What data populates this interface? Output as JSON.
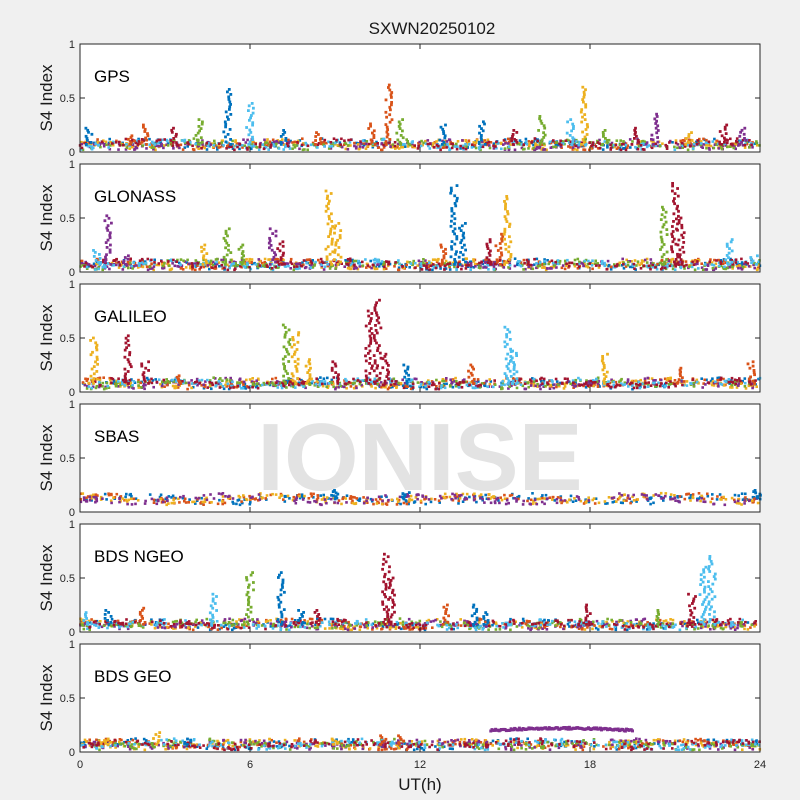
{
  "title": "SXWN20250102",
  "watermark": "IONISE",
  "colors": [
    "#0072BD",
    "#D95319",
    "#EDB120",
    "#7E2F8E",
    "#77AC30",
    "#4DBEEE",
    "#A2142F"
  ],
  "chart_data": [
    {
      "type": "scatter",
      "name": "GPS",
      "xlabel": "",
      "ylabel": "S4 Index",
      "xlim": [
        0,
        24
      ],
      "ylim": [
        0,
        1
      ],
      "xticks": [
        0,
        6,
        12,
        18,
        24
      ],
      "yticks": [
        0,
        0.5,
        1
      ],
      "xtick_labels_shown": false,
      "baseline": 0.07,
      "spikes": [
        [
          0.3,
          0.22,
          0
        ],
        [
          1.8,
          0.15,
          1
        ],
        [
          2.3,
          0.25,
          1
        ],
        [
          3.3,
          0.22,
          6
        ],
        [
          4.2,
          0.3,
          4
        ],
        [
          5.2,
          0.58,
          0
        ],
        [
          6.0,
          0.45,
          5
        ],
        [
          7.2,
          0.2,
          0
        ],
        [
          8.4,
          0.18,
          1
        ],
        [
          10.3,
          0.26,
          1
        ],
        [
          10.9,
          0.62,
          1
        ],
        [
          11.3,
          0.3,
          4
        ],
        [
          12.8,
          0.25,
          0
        ],
        [
          14.2,
          0.28,
          0
        ],
        [
          15.3,
          0.2,
          6
        ],
        [
          16.3,
          0.33,
          4
        ],
        [
          17.3,
          0.3,
          5
        ],
        [
          17.8,
          0.6,
          2
        ],
        [
          18.5,
          0.2,
          4
        ],
        [
          19.6,
          0.22,
          6
        ],
        [
          20.3,
          0.35,
          3
        ],
        [
          21.5,
          0.18,
          2
        ],
        [
          22.7,
          0.25,
          6
        ],
        [
          23.4,
          0.22,
          3
        ]
      ]
    },
    {
      "type": "scatter",
      "name": "GLONASS",
      "xlabel": "",
      "ylabel": "S4 Index",
      "xlim": [
        0,
        24
      ],
      "ylim": [
        0,
        1
      ],
      "xticks": [
        0,
        6,
        12,
        18,
        24
      ],
      "yticks": [
        0,
        0.5,
        1
      ],
      "xtick_labels_shown": false,
      "baseline": 0.07,
      "spikes": [
        [
          0.6,
          0.2,
          5
        ],
        [
          1.0,
          0.52,
          3
        ],
        [
          1.6,
          0.15,
          3
        ],
        [
          4.4,
          0.25,
          2
        ],
        [
          5.2,
          0.4,
          4
        ],
        [
          5.7,
          0.25,
          4
        ],
        [
          6.8,
          0.4,
          3
        ],
        [
          7.1,
          0.28,
          6
        ],
        [
          8.8,
          0.75,
          2
        ],
        [
          9.1,
          0.45,
          2
        ],
        [
          12.8,
          0.25,
          1
        ],
        [
          13.2,
          0.8,
          0
        ],
        [
          13.5,
          0.45,
          0
        ],
        [
          14.4,
          0.3,
          6
        ],
        [
          14.8,
          0.35,
          1
        ],
        [
          15.1,
          0.7,
          2
        ],
        [
          20.6,
          0.6,
          4
        ],
        [
          21.0,
          0.82,
          6
        ],
        [
          21.2,
          0.5,
          6
        ],
        [
          22.9,
          0.3,
          5
        ],
        [
          23.8,
          0.15,
          5
        ]
      ]
    },
    {
      "type": "scatter",
      "name": "GALILEO",
      "xlabel": "",
      "ylabel": "S4 Index",
      "xlim": [
        0,
        24
      ],
      "ylim": [
        0,
        1
      ],
      "xticks": [
        0,
        6,
        12,
        18,
        24
      ],
      "yticks": [
        0,
        0.5,
        1
      ],
      "xtick_labels_shown": false,
      "baseline": 0.08,
      "spikes": [
        [
          0.5,
          0.5,
          2
        ],
        [
          1.7,
          0.52,
          6
        ],
        [
          2.3,
          0.28,
          6
        ],
        [
          3.5,
          0.15,
          1
        ],
        [
          7.3,
          0.62,
          4
        ],
        [
          7.6,
          0.55,
          2
        ],
        [
          8.1,
          0.3,
          2
        ],
        [
          9.0,
          0.28,
          6
        ],
        [
          10.2,
          0.75,
          6
        ],
        [
          10.5,
          0.85,
          6
        ],
        [
          10.8,
          0.35,
          6
        ],
        [
          11.5,
          0.25,
          0
        ],
        [
          13.8,
          0.25,
          1
        ],
        [
          15.1,
          0.6,
          5
        ],
        [
          15.3,
          0.38,
          5
        ],
        [
          18.5,
          0.35,
          2
        ],
        [
          21.2,
          0.22,
          1
        ],
        [
          23.7,
          0.28,
          1
        ]
      ]
    },
    {
      "type": "scatter",
      "name": "SBAS",
      "xlabel": "",
      "ylabel": "S4 Index",
      "xlim": [
        0,
        24
      ],
      "ylim": [
        0,
        1
      ],
      "xticks": [
        0,
        6,
        12,
        18,
        24
      ],
      "yticks": [
        0,
        0.5,
        1
      ],
      "xtick_labels_shown": false,
      "baseline": 0.12,
      "spikes": [
        [
          9.0,
          0.2,
          0
        ],
        [
          11.5,
          0.18,
          0
        ],
        [
          23.9,
          0.2,
          0
        ]
      ]
    },
    {
      "type": "scatter",
      "name": "BDS NGEO",
      "xlabel": "",
      "ylabel": "S4 Index",
      "xlim": [
        0,
        24
      ],
      "ylim": [
        0,
        1
      ],
      "xticks": [
        0,
        6,
        12,
        18,
        24
      ],
      "yticks": [
        0,
        0.5,
        1
      ],
      "xtick_labels_shown": false,
      "baseline": 0.07,
      "spikes": [
        [
          0.2,
          0.18,
          5
        ],
        [
          1.0,
          0.2,
          0
        ],
        [
          2.2,
          0.22,
          1
        ],
        [
          4.7,
          0.35,
          5
        ],
        [
          6.0,
          0.55,
          4
        ],
        [
          7.1,
          0.55,
          0
        ],
        [
          7.8,
          0.2,
          0
        ],
        [
          8.4,
          0.2,
          6
        ],
        [
          10.8,
          0.72,
          6
        ],
        [
          11.0,
          0.5,
          6
        ],
        [
          12.9,
          0.25,
          1
        ],
        [
          13.9,
          0.25,
          0
        ],
        [
          14.3,
          0.18,
          0
        ],
        [
          17.9,
          0.25,
          6
        ],
        [
          20.4,
          0.2,
          4
        ],
        [
          21.6,
          0.35,
          6
        ],
        [
          22.0,
          0.6,
          5
        ],
        [
          22.3,
          0.7,
          5
        ]
      ]
    },
    {
      "type": "scatter",
      "name": "BDS GEO",
      "xlabel": "UT(h)",
      "ylabel": "S4 Index",
      "xlim": [
        0,
        24
      ],
      "ylim": [
        0,
        1
      ],
      "xticks": [
        0,
        6,
        12,
        18,
        24
      ],
      "yticks": [
        0,
        0.5,
        1
      ],
      "xtick_labels_shown": true,
      "baseline": 0.07,
      "spikes": [
        [
          1.0,
          0.12,
          2
        ],
        [
          2.7,
          0.18,
          2
        ],
        [
          3.8,
          0.12,
          0
        ],
        [
          9.0,
          0.12,
          2
        ],
        [
          10.7,
          0.15,
          1
        ],
        [
          11.3,
          0.15,
          1
        ]
      ],
      "segments": [
        {
          "x0": 14.5,
          "x1": 19.5,
          "y0": 0.2,
          "y1": 0.22,
          "series": 3
        }
      ]
    }
  ]
}
